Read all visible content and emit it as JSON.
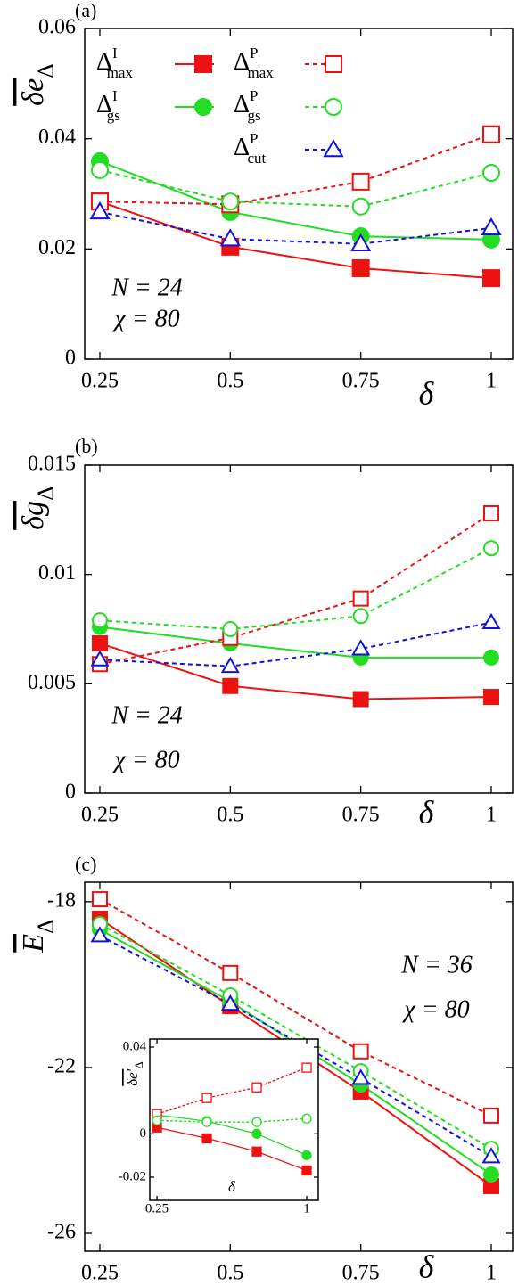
{
  "chart_data": [
    {
      "type": "line",
      "panel": "(a)",
      "ylabel": {
        "base": "δe",
        "sub": "Δ"
      },
      "xlabel": "δ",
      "annotations": [
        "N = 24",
        "χ = 80"
      ],
      "legend": "top",
      "x": [
        0.25,
        0.5,
        0.75,
        1
      ],
      "xlim": [
        0.221,
        1.041
      ],
      "xticks": [
        0.25,
        0.5,
        0.75,
        1
      ],
      "ylim": [
        0,
        0.06
      ],
      "yticks": [
        0,
        0.02,
        0.04,
        0.06
      ],
      "series": [
        {
          "name": "Δ",
          "sup": "I",
          "sub": "max",
          "color": "#ee1111",
          "marker": "square",
          "filled": true,
          "dashed": false,
          "values": [
            0.0286,
            0.0204,
            0.0165,
            0.0147
          ]
        },
        {
          "name": "Δ",
          "sup": "I",
          "sub": "gs",
          "color": "#22dd22",
          "marker": "circle",
          "filled": true,
          "dashed": false,
          "values": [
            0.0359,
            0.0267,
            0.0223,
            0.0217
          ]
        },
        {
          "name": "Δ",
          "sup": "P",
          "sub": "max",
          "color": "#ee1111",
          "marker": "square",
          "filled": false,
          "dashed": true,
          "values": [
            0.0286,
            0.0281,
            0.0322,
            0.0408
          ]
        },
        {
          "name": "Δ",
          "sup": "P",
          "sub": "gs",
          "color": "#22dd22",
          "marker": "circle",
          "filled": false,
          "dashed": true,
          "values": [
            0.0343,
            0.0286,
            0.0277,
            0.0338
          ]
        },
        {
          "name": "Δ",
          "sup": "P",
          "sub": "cut",
          "color": "#1111dd",
          "marker": "triangle",
          "filled": false,
          "dashed": true,
          "values": [
            0.0267,
            0.0218,
            0.0209,
            0.0238
          ]
        }
      ]
    },
    {
      "type": "line",
      "panel": "(b)",
      "ylabel": {
        "base": "δg",
        "sub": "Δ"
      },
      "xlabel": "δ",
      "annotations": [
        "N = 24",
        "χ = 80"
      ],
      "x": [
        0.25,
        0.5,
        0.75,
        1
      ],
      "xlim": [
        0.221,
        1.041
      ],
      "xticks": [
        0.25,
        0.5,
        0.75,
        1
      ],
      "ylim": [
        0,
        0.015
      ],
      "yticks": [
        0,
        0.005,
        0.01,
        0.015
      ],
      "series": [
        {
          "color": "#ee1111",
          "marker": "square",
          "filled": true,
          "dashed": false,
          "values": [
            0.00685,
            0.0049,
            0.0043,
            0.0044
          ]
        },
        {
          "color": "#22dd22",
          "marker": "circle",
          "filled": true,
          "dashed": false,
          "values": [
            0.0076,
            0.00685,
            0.0062,
            0.0062
          ]
        },
        {
          "color": "#ee1111",
          "marker": "square",
          "filled": false,
          "dashed": true,
          "values": [
            0.0059,
            0.0071,
            0.0089,
            0.0128
          ]
        },
        {
          "color": "#22dd22",
          "marker": "circle",
          "filled": false,
          "dashed": true,
          "values": [
            0.0079,
            0.0075,
            0.0081,
            0.0112
          ]
        },
        {
          "color": "#1111dd",
          "marker": "triangle",
          "filled": false,
          "dashed": true,
          "values": [
            0.0061,
            0.0058,
            0.0066,
            0.0078
          ]
        }
      ]
    },
    {
      "type": "line",
      "panel": "(c)",
      "ylabel": {
        "base": "E",
        "sub": "Δ"
      },
      "xlabel": "δ",
      "annotations": [
        "N = 36",
        "χ = 80"
      ],
      "x": [
        0.25,
        0.5,
        0.75,
        1
      ],
      "xlim": [
        0.221,
        1.041
      ],
      "xticks": [
        0.25,
        0.5,
        0.75,
        1
      ],
      "ylim": [
        -26.43,
        -17.53
      ],
      "yticks": [
        -26,
        -22,
        -18
      ],
      "series": [
        {
          "color": "#ee1111",
          "marker": "square",
          "filled": true,
          "dashed": false,
          "values": [
            -18.41,
            -20.52,
            -22.58,
            -24.86
          ]
        },
        {
          "color": "#22dd22",
          "marker": "circle",
          "filled": true,
          "dashed": false,
          "values": [
            -18.67,
            -20.41,
            -22.41,
            -24.58
          ]
        },
        {
          "color": "#ee1111",
          "marker": "square",
          "filled": false,
          "dashed": true,
          "values": [
            -17.94,
            -19.72,
            -21.61,
            -23.16
          ]
        },
        {
          "color": "#22dd22",
          "marker": "circle",
          "filled": false,
          "dashed": true,
          "values": [
            -18.54,
            -20.26,
            -22.09,
            -23.96
          ]
        },
        {
          "color": "#1111dd",
          "marker": "triangle",
          "filled": false,
          "dashed": true,
          "values": [
            -18.82,
            -20.47,
            -22.26,
            -24.15
          ]
        }
      ]
    },
    {
      "type": "line",
      "ylabel": {
        "base": "δe′",
        "sub": "Δ"
      },
      "xlabel": "δ",
      "x": [
        0.25,
        0.5,
        0.75,
        1
      ],
      "xlim": [
        0.214,
        1.058
      ],
      "xticks": [
        0.25,
        1
      ],
      "ylim": [
        -0.0307,
        0.0437
      ],
      "yticks": [
        -0.02,
        0,
        0.04
      ],
      "series": [
        {
          "color": "#ee1111",
          "marker": "square",
          "filled": true,
          "dashed": false,
          "values": [
            0.0029,
            -0.0021,
            -0.0082,
            -0.0169
          ]
        },
        {
          "color": "#22dd22",
          "marker": "circle",
          "filled": true,
          "dashed": false,
          "values": [
            0.0087,
            0.0058,
            0,
            -0.0099
          ]
        },
        {
          "color": "#ee1111",
          "marker": "square",
          "filled": false,
          "dashed": true,
          "values": [
            0.0091,
            0.0165,
            0.0214,
            0.0305
          ]
        },
        {
          "color": "#22dd22",
          "marker": "circle",
          "filled": false,
          "dashed": true,
          "values": [
            0.0062,
            0.0054,
            0.0054,
            0.007
          ]
        }
      ]
    }
  ]
}
